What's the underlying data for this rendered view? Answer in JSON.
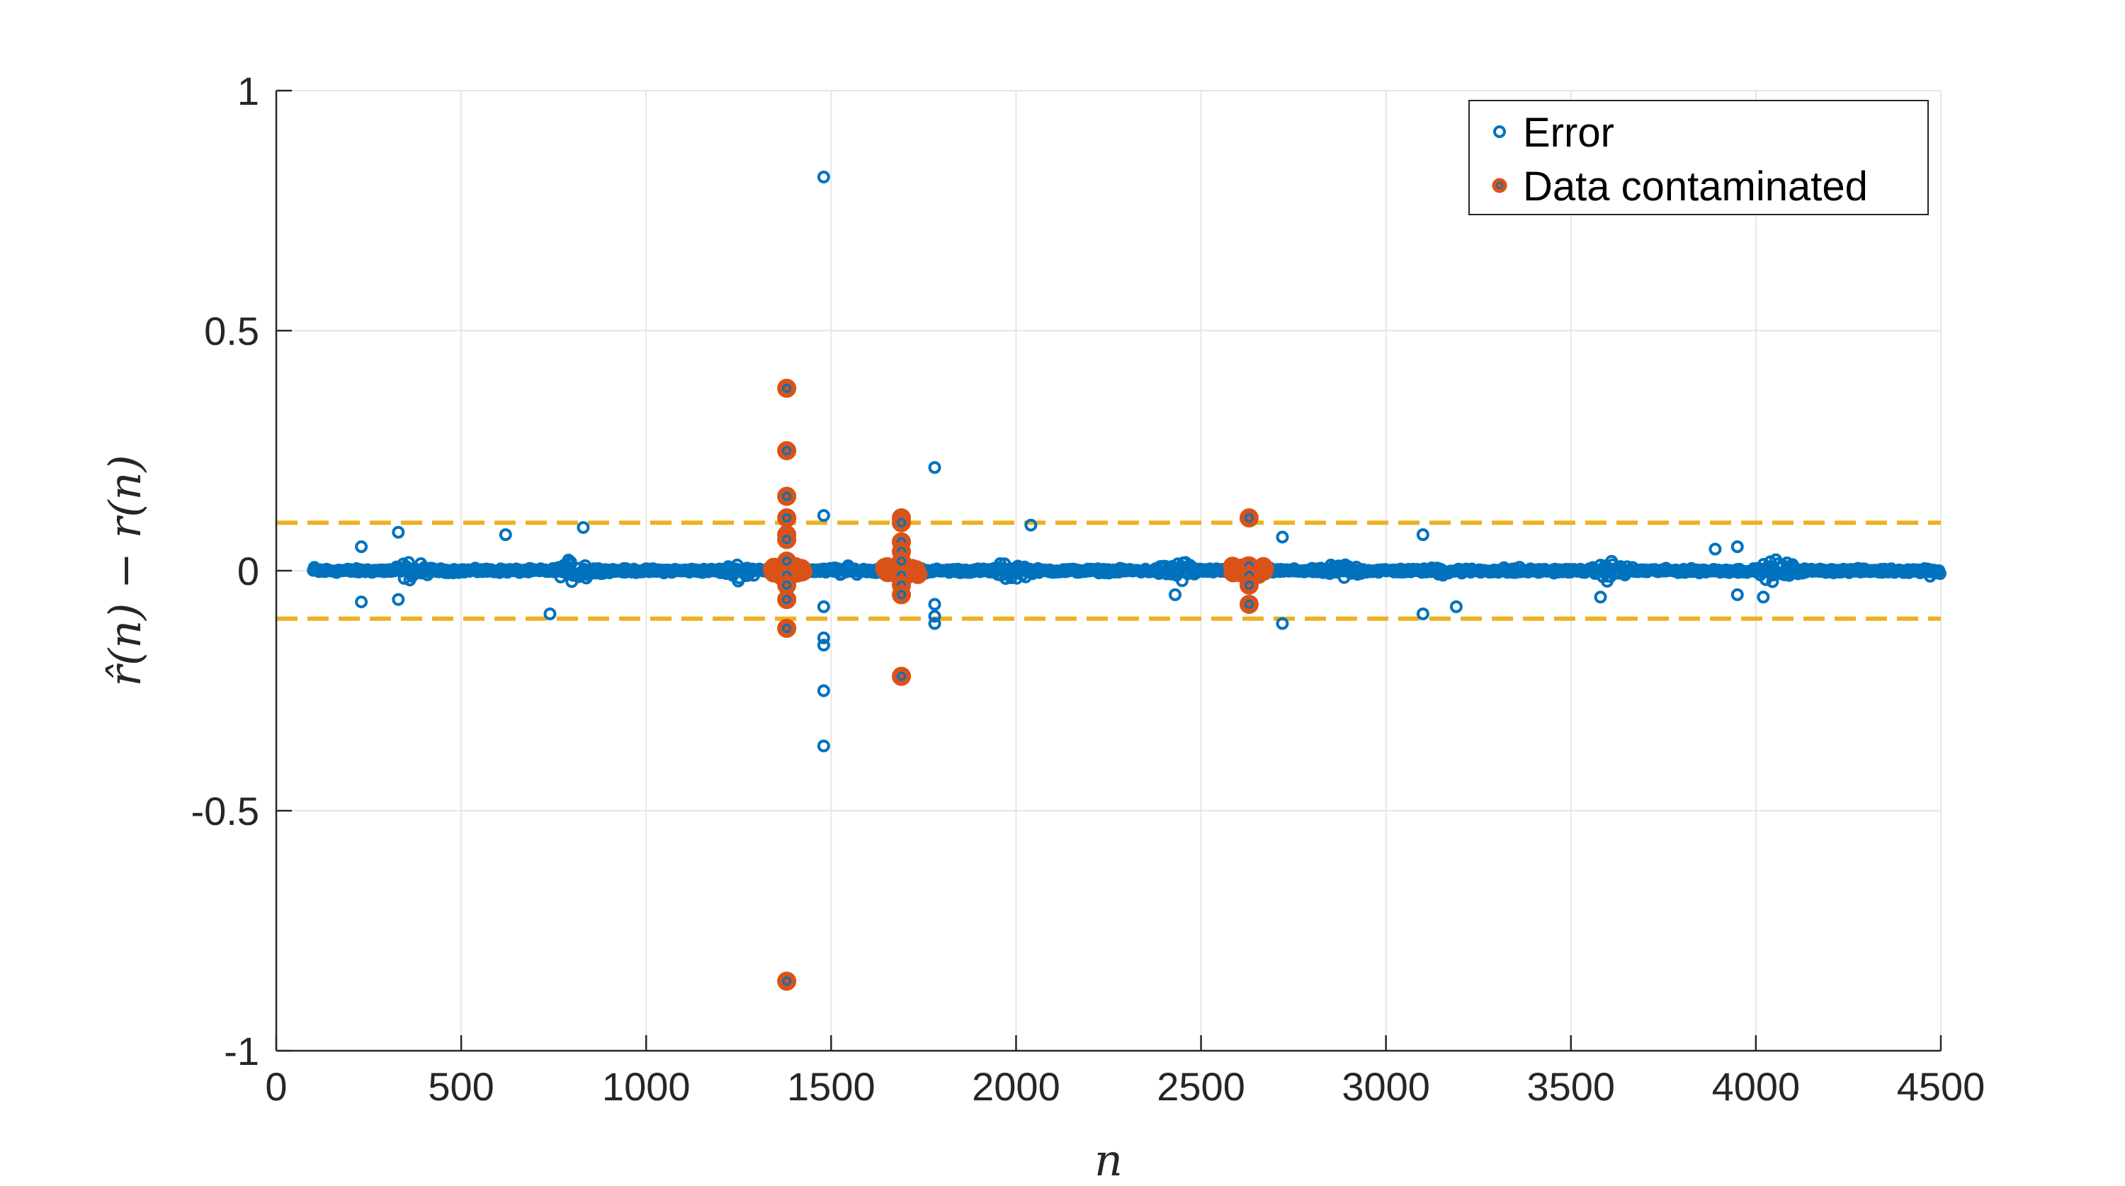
{
  "chart_data": {
    "type": "scatter",
    "title": "",
    "xlabel": "n",
    "ylabel": "r̂(n) − r(n)",
    "xlim": [
      0,
      4500
    ],
    "ylim": [
      -1,
      1
    ],
    "xticks": [
      0,
      500,
      1000,
      1500,
      2000,
      2500,
      3000,
      3500,
      4000,
      4500
    ],
    "xtick_labels": [
      "0",
      "500",
      "1000",
      "1500",
      "2000",
      "2500",
      "3000",
      "3500",
      "4000",
      "4500"
    ],
    "yticks": [
      -1,
      -0.5,
      0,
      0.5,
      1
    ],
    "ytick_labels": [
      "-1",
      "-0.5",
      "0",
      "0.5",
      "1"
    ],
    "grid": true,
    "legend_position": "top-right",
    "colors": {
      "error": "#0072BD",
      "contaminated": "#D95319",
      "threshold": "#EDB120",
      "grid": "#e6e6e6",
      "axis": "#262626"
    },
    "thresholds": [
      0.1,
      -0.1
    ],
    "series": [
      {
        "name": "Error",
        "marker": "open-circle",
        "n_range": [
          100,
          4500
        ],
        "points": [
          [
            1480,
            0.82
          ],
          [
            1480,
            -0.25
          ],
          [
            1480,
            -0.365
          ],
          [
            1480,
            -0.14
          ],
          [
            1480,
            -0.155
          ],
          [
            1480,
            -0.075
          ],
          [
            1480,
            0.115
          ],
          [
            1780,
            0.215
          ],
          [
            1780,
            -0.07
          ],
          [
            1780,
            -0.095
          ],
          [
            1780,
            -0.11
          ],
          [
            2040,
            0.095
          ],
          [
            2630,
            0.115
          ],
          [
            2720,
            0.07
          ],
          [
            2720,
            -0.11
          ],
          [
            330,
            0.08
          ],
          [
            330,
            -0.06
          ],
          [
            230,
            0.05
          ],
          [
            230,
            -0.065
          ],
          [
            620,
            0.075
          ],
          [
            740,
            -0.09
          ],
          [
            830,
            0.09
          ],
          [
            3100,
            0.075
          ],
          [
            3100,
            -0.09
          ],
          [
            3190,
            -0.075
          ],
          [
            3580,
            -0.055
          ],
          [
            3890,
            0.045
          ],
          [
            3950,
            0.05
          ],
          [
            3950,
            -0.05
          ],
          [
            4020,
            -0.055
          ],
          [
            2430,
            -0.05
          ]
        ]
      },
      {
        "name": "Data contaminated",
        "marker": "filled-circle",
        "clusters": [
          {
            "n": 1380,
            "values": [
              0.38,
              0.25,
              0.155,
              0.11,
              0.075,
              0.065,
              0.02,
              -0.01,
              -0.03,
              -0.06,
              -0.12,
              -0.855
            ]
          },
          {
            "n": 1690,
            "values": [
              0.11,
              0.1,
              0.06,
              0.04,
              0.02,
              -0.01,
              -0.03,
              -0.05,
              -0.22
            ]
          },
          {
            "n": 2630,
            "values": [
              0.11,
              0.01,
              -0.01,
              -0.03,
              -0.07
            ]
          }
        ]
      }
    ]
  }
}
